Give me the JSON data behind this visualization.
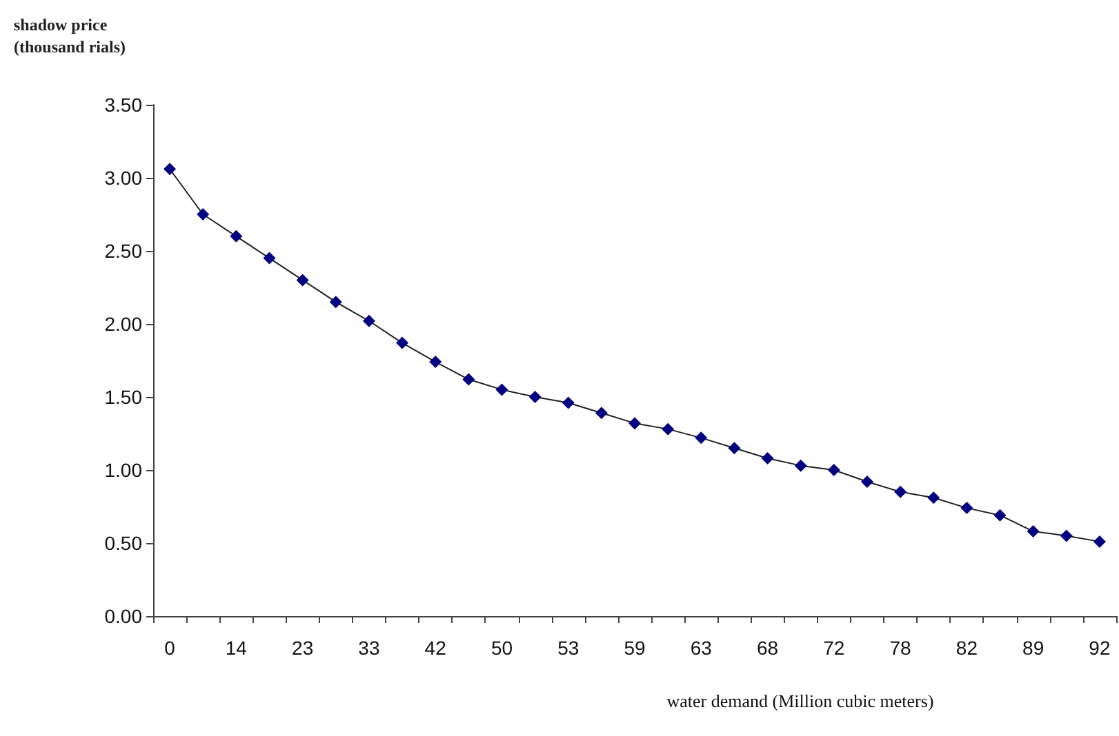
{
  "chart_data": {
    "type": "line",
    "ylabel": "shadow price\n(thousand rials)",
    "xlabel": "water demand (Million cubic meters)",
    "categories": [
      "0",
      null,
      "14",
      null,
      "23",
      null,
      "33",
      null,
      "42",
      null,
      "50",
      null,
      "53",
      null,
      "59",
      null,
      "63",
      null,
      "68",
      null,
      "72",
      null,
      "78",
      null,
      "82",
      null,
      "89",
      null,
      "92"
    ],
    "series": [
      {
        "color": "#000080",
        "values": [
          3.06,
          2.75,
          2.6,
          2.45,
          2.3,
          2.15,
          2.02,
          1.87,
          1.74,
          1.62,
          1.55,
          1.5,
          1.46,
          1.39,
          1.32,
          1.28,
          1.22,
          1.15,
          1.08,
          1.03,
          1.0,
          0.92,
          0.85,
          0.81,
          0.74,
          0.69,
          0.58,
          0.55,
          0.51
        ]
      }
    ],
    "ylim": [
      0,
      3.5
    ],
    "yticks": [
      {
        "value": 0,
        "label": "0.00"
      },
      {
        "value": 0.5,
        "label": "0.50"
      },
      {
        "value": 1,
        "label": "1.00"
      },
      {
        "value": 1.5,
        "label": "1.50"
      },
      {
        "value": 2,
        "label": "2.00"
      },
      {
        "value": 2.5,
        "label": "2.50"
      },
      {
        "value": 3,
        "label": "3.00"
      },
      {
        "value": 3.5,
        "label": "3.50"
      }
    ],
    "grid": false,
    "marker": "diamond",
    "line_style": "solid"
  }
}
